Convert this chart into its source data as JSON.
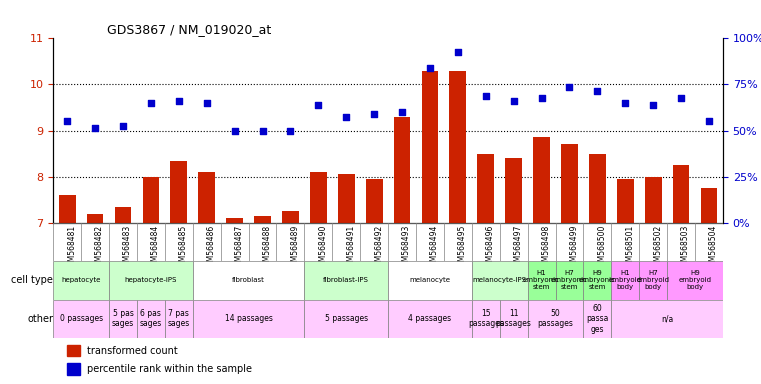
{
  "title": "GDS3867 / NM_019020_at",
  "samples": [
    "GSM568481",
    "GSM568482",
    "GSM568483",
    "GSM568484",
    "GSM568485",
    "GSM568486",
    "GSM568487",
    "GSM568488",
    "GSM568489",
    "GSM568490",
    "GSM568491",
    "GSM568492",
    "GSM568493",
    "GSM568494",
    "GSM568495",
    "GSM568496",
    "GSM568497",
    "GSM568498",
    "GSM568499",
    "GSM568500",
    "GSM568501",
    "GSM568502",
    "GSM568503",
    "GSM568504"
  ],
  "bar_values": [
    7.6,
    7.2,
    7.35,
    8.0,
    8.35,
    8.1,
    7.1,
    7.15,
    7.25,
    8.1,
    8.05,
    7.95,
    9.3,
    10.3,
    10.3,
    8.5,
    8.4,
    8.85,
    8.7,
    8.5,
    7.95,
    8.0,
    8.25,
    7.75
  ],
  "dot_values": [
    9.2,
    9.05,
    9.1,
    9.6,
    9.65,
    9.6,
    9.0,
    9.0,
    9.0,
    9.55,
    9.3,
    9.35,
    9.4,
    10.35,
    10.7,
    9.75,
    9.65,
    9.7,
    9.95,
    9.85,
    9.6,
    9.55,
    9.7,
    9.2
  ],
  "ylim_left": [
    7,
    11
  ],
  "yticks_left": [
    7,
    8,
    9,
    10,
    11
  ],
  "yticks_right_vals": [
    0,
    25,
    50,
    75,
    100
  ],
  "yticks_right_pos": [
    7,
    8,
    9,
    10,
    11
  ],
  "bar_color": "#cc2200",
  "dot_color": "#0000cc",
  "cell_type_groups": [
    {
      "label": "hepatocyte",
      "start": 0,
      "end": 2,
      "color": "#ccffcc"
    },
    {
      "label": "hepatocyte-iPS",
      "start": 2,
      "end": 5,
      "color": "#ccffcc"
    },
    {
      "label": "fibroblast",
      "start": 5,
      "end": 9,
      "color": "#ffffff"
    },
    {
      "label": "fibroblast-IPS",
      "start": 9,
      "end": 12,
      "color": "#ccffcc"
    },
    {
      "label": "melanocyte",
      "start": 12,
      "end": 15,
      "color": "#ffffff"
    },
    {
      "label": "melanocyte-IPS",
      "start": 15,
      "end": 17,
      "color": "#ccffcc"
    },
    {
      "label": "H1 embryonic stem",
      "start": 17,
      "end": 18,
      "color": "#99ff99"
    },
    {
      "label": "H7 embryonic stem",
      "start": 18,
      "end": 19,
      "color": "#99ff99"
    },
    {
      "label": "H9 embryonic stem",
      "start": 19,
      "end": 20,
      "color": "#99ff99"
    },
    {
      "label": "H1 embryoid body",
      "start": 20,
      "end": 21,
      "color": "#ff99ff"
    },
    {
      "label": "H7 embryoid body",
      "start": 21,
      "end": 22,
      "color": "#ff99ff"
    },
    {
      "label": "H9 embryoid body",
      "start": 22,
      "end": 24,
      "color": "#ff99ff"
    }
  ],
  "other_groups": [
    {
      "label": "0 passages",
      "start": 0,
      "end": 2,
      "color": "#ffccff"
    },
    {
      "label": "5 pas\nsages",
      "start": 2,
      "end": 3,
      "color": "#ffccff"
    },
    {
      "label": "6 pas\nsages",
      "start": 3,
      "end": 4,
      "color": "#ffccff"
    },
    {
      "label": "7 pas\nsages",
      "start": 4,
      "end": 5,
      "color": "#ffccff"
    },
    {
      "label": "14 passages",
      "start": 5,
      "end": 9,
      "color": "#ffccff"
    },
    {
      "label": "5 passages",
      "start": 9,
      "end": 12,
      "color": "#ffccff"
    },
    {
      "label": "4 passages",
      "start": 12,
      "end": 15,
      "color": "#ffccff"
    },
    {
      "label": "15\npassages",
      "start": 15,
      "end": 16,
      "color": "#ffccff"
    },
    {
      "label": "11\npassages",
      "start": 16,
      "end": 17,
      "color": "#ffccff"
    },
    {
      "label": "50\npassages",
      "start": 17,
      "end": 19,
      "color": "#ffccff"
    },
    {
      "label": "60\npassa\nges",
      "start": 19,
      "end": 20,
      "color": "#ffccff"
    },
    {
      "label": "n/a",
      "start": 20,
      "end": 24,
      "color": "#ffccff"
    }
  ]
}
